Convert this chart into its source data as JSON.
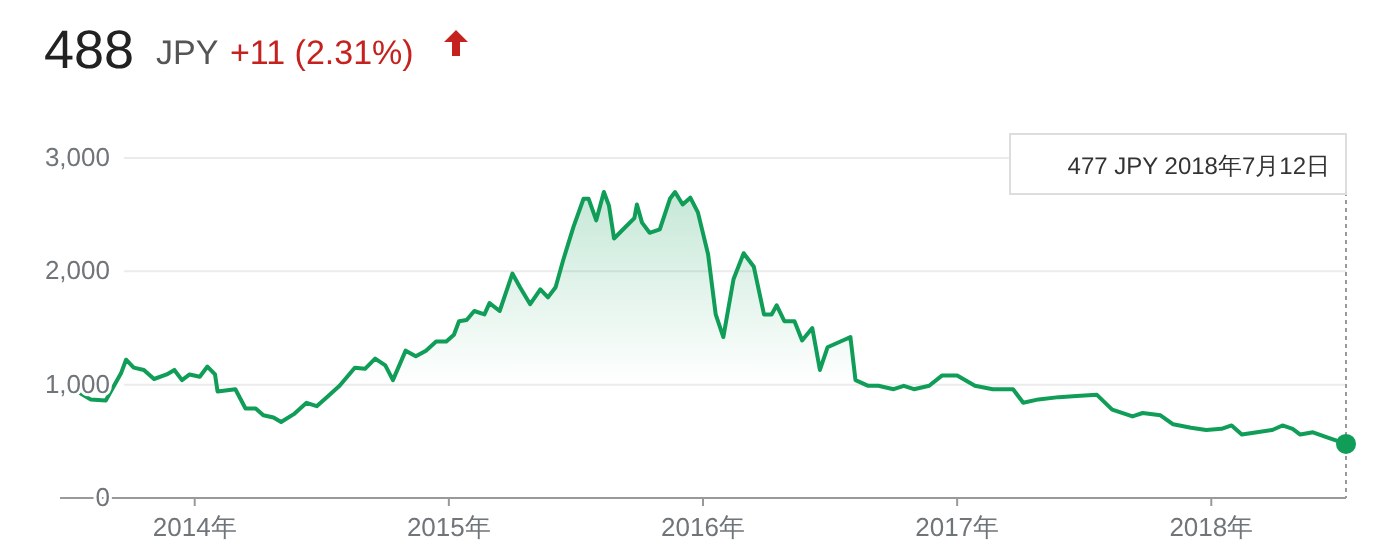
{
  "chart_data": {
    "type": "area",
    "title": "488",
    "subtitle": "JPY",
    "annotations": [
      "+11 (2.31%)",
      "477 JPY  2018年7月12日"
    ],
    "series": [
      {
        "color": "#0f9d58",
        "x": [
          2013.53,
          2013.59,
          2013.65,
          2013.71,
          2013.73,
          2013.76,
          2013.8,
          2013.84,
          2013.89,
          2013.92,
          2013.95,
          2013.98,
          2014.02,
          2014.05,
          2014.08,
          2014.09,
          2014.16,
          2014.2,
          2014.24,
          2014.27,
          2014.31,
          2014.34,
          2014.39,
          2014.44,
          2014.48,
          2014.52,
          2014.57,
          2014.63,
          2014.67,
          2014.71,
          2014.75,
          2014.78,
          2014.83,
          2014.87,
          2014.91,
          2014.95,
          2014.99,
          2015.02,
          2015.04,
          2015.07,
          2015.1,
          2015.14,
          2015.16,
          2015.2,
          2015.25,
          2015.28,
          2015.32,
          2015.36,
          2015.39,
          2015.42,
          2015.45,
          2015.49,
          2015.53,
          2015.55,
          2015.58,
          2015.61,
          2015.63,
          2015.65,
          2015.69,
          2015.73,
          2015.74,
          2015.76,
          2015.79,
          2015.83,
          2015.87,
          2015.89,
          2015.92,
          2015.95,
          2015.98,
          2016.02,
          2016.05,
          2016.08,
          2016.12,
          2016.16,
          2016.2,
          2016.24,
          2016.27,
          2016.29,
          2016.32,
          2016.36,
          2016.39,
          2016.43,
          2016.46,
          2016.49,
          2016.55,
          2016.58,
          2016.6,
          2016.65,
          2016.69,
          2016.75,
          2016.79,
          2016.83,
          2016.89,
          2016.94,
          2017.0,
          2017.07,
          2017.14,
          2017.22,
          2017.26,
          2017.32,
          2017.4,
          2017.47,
          2017.55,
          2017.61,
          2017.69,
          2017.73,
          2017.8,
          2017.85,
          2017.92,
          2017.98,
          2018.04,
          2018.08,
          2018.12,
          2018.18,
          2018.24,
          2018.28,
          2018.32,
          2018.35,
          2018.4,
          2018.45,
          2018.53
        ],
        "values": [
          950,
          870,
          860,
          1100,
          1220,
          1150,
          1130,
          1050,
          1090,
          1130,
          1040,
          1090,
          1070,
          1160,
          1090,
          940,
          960,
          790,
          790,
          730,
          710,
          670,
          740,
          840,
          810,
          890,
          990,
          1150,
          1140,
          1230,
          1170,
          1040,
          1300,
          1250,
          1300,
          1380,
          1380,
          1440,
          1560,
          1570,
          1650,
          1620,
          1720,
          1650,
          1980,
          1860,
          1710,
          1840,
          1770,
          1860,
          2100,
          2390,
          2640,
          2640,
          2450,
          2700,
          2580,
          2290,
          2380,
          2470,
          2590,
          2430,
          2340,
          2370,
          2640,
          2700,
          2590,
          2650,
          2520,
          2150,
          1620,
          1420,
          1930,
          2160,
          2040,
          1620,
          1620,
          1700,
          1560,
          1560,
          1390,
          1500,
          1130,
          1330,
          1390,
          1420,
          1040,
          990,
          990,
          960,
          990,
          960,
          990,
          1080,
          1080,
          990,
          960,
          960,
          840,
          870,
          890,
          900,
          910,
          780,
          720,
          750,
          730,
          650,
          620,
          600,
          610,
          640,
          560,
          580,
          600,
          640,
          610,
          560,
          580,
          540,
          477
        ]
      }
    ],
    "xlim": [
      2013.47,
      2018.53
    ],
    "xticks": [
      {
        "value": 2014,
        "label": "2014年"
      },
      {
        "value": 2015,
        "label": "2015年"
      },
      {
        "value": 2016,
        "label": "2016年"
      },
      {
        "value": 2017,
        "label": "2017年"
      },
      {
        "value": 2018,
        "label": "2018年"
      }
    ],
    "ylim": [
      0,
      3000
    ],
    "yticks": [
      0,
      {
        "value": 1000,
        "label": "1,000"
      },
      {
        "value": 2000,
        "label": "2,000"
      },
      {
        "value": 3000,
        "label": "3,000"
      }
    ],
    "grid": "y",
    "marker": "none",
    "line_style": "solid"
  }
}
